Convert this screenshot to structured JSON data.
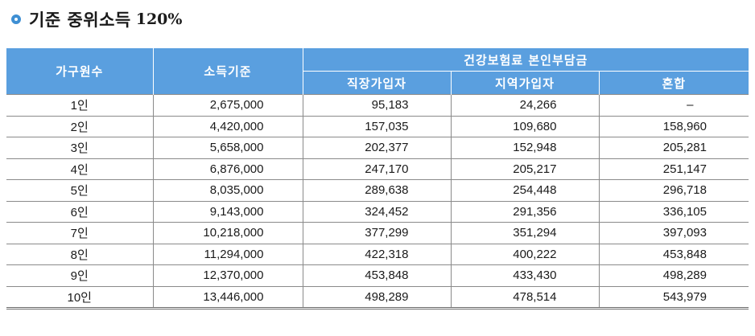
{
  "title": {
    "text": "기준 중위소득",
    "percent": "120%"
  },
  "table": {
    "headers": {
      "household": "가구원수",
      "income": "소득기준",
      "group": "건강보험료 본인부담금",
      "work": "직장가입자",
      "region": "지역가입자",
      "mixed": "혼합"
    },
    "rows": [
      {
        "household": "1인",
        "income": "2,675,000",
        "work": "95,183",
        "region": "24,266",
        "mixed": "–"
      },
      {
        "household": "2인",
        "income": "4,420,000",
        "work": "157,035",
        "region": "109,680",
        "mixed": "158,960"
      },
      {
        "household": "3인",
        "income": "5,658,000",
        "work": "202,377",
        "region": "152,948",
        "mixed": "205,281"
      },
      {
        "household": "4인",
        "income": "6,876,000",
        "work": "247,170",
        "region": "205,217",
        "mixed": "251,147"
      },
      {
        "household": "5인",
        "income": "8,035,000",
        "work": "289,638",
        "region": "254,448",
        "mixed": "296,718"
      },
      {
        "household": "6인",
        "income": "9,143,000",
        "work": "324,452",
        "region": "291,356",
        "mixed": "336,105"
      },
      {
        "household": "7인",
        "income": "10,218,000",
        "work": "377,299",
        "region": "351,294",
        "mixed": "397,093"
      },
      {
        "household": "8인",
        "income": "11,294,000",
        "work": "422,318",
        "region": "400,222",
        "mixed": "453,848"
      },
      {
        "household": "9인",
        "income": "12,370,000",
        "work": "453,848",
        "region": "433,430",
        "mixed": "498,289"
      },
      {
        "household": "10인",
        "income": "13,446,000",
        "work": "498,289",
        "region": "478,514",
        "mixed": "543,979"
      }
    ]
  },
  "colors": {
    "header_bg": "#5a9fdf",
    "bullet": "#3e8fd3"
  },
  "icons": {
    "bullet": "ring-bullet-icon"
  }
}
